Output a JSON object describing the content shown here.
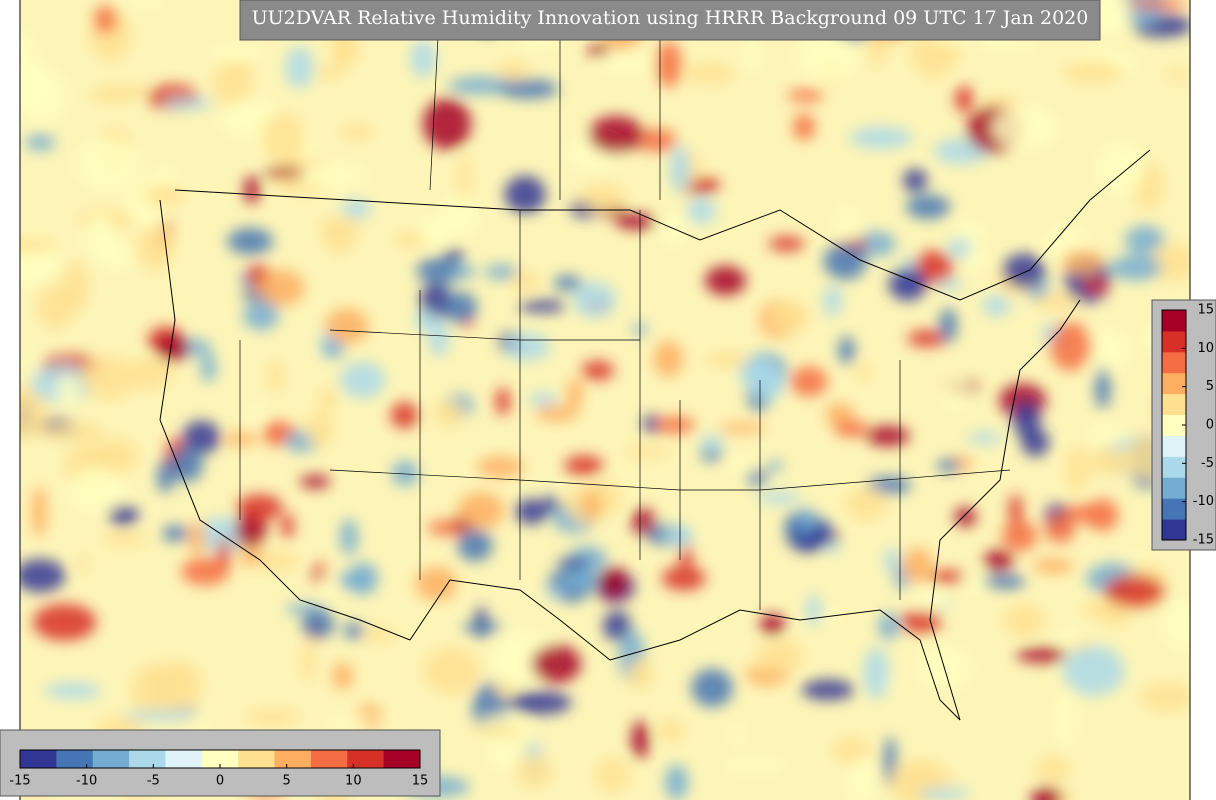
{
  "title": "UU2DVAR Relative Humidity Innovation using HRRR Background 09 UTC 17 Jan 2020",
  "colors": [
    "#313695",
    "#4575b4",
    "#74add1",
    "#abd9e9",
    "#e0f3f8",
    "#ffffbf",
    "#fee090",
    "#fdae61",
    "#f46d43",
    "#d73027",
    "#a50026"
  ],
  "horizontal_colorbar": {
    "range": [
      -15,
      15
    ],
    "ticks": [
      -15,
      -10,
      -5,
      0,
      5,
      10,
      15
    ]
  },
  "vertical_colorbar": {
    "range": [
      -15,
      15
    ],
    "ticks": [
      -15,
      -10,
      -5,
      0,
      5,
      10,
      15
    ]
  }
}
